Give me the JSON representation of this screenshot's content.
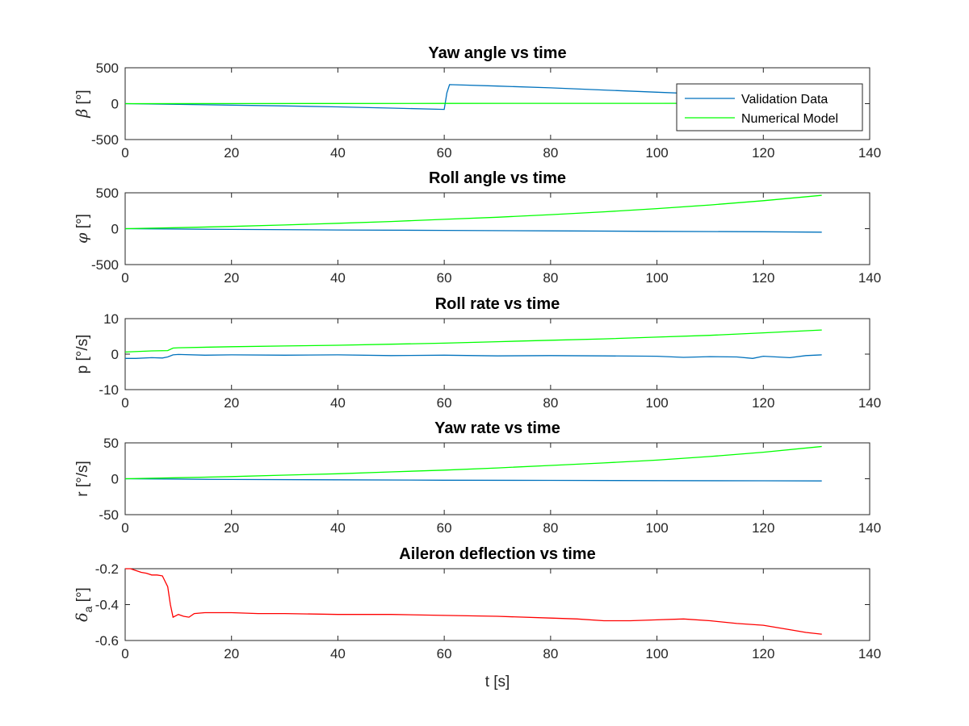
{
  "chart_data": [
    {
      "type": "line",
      "title": "Yaw angle vs time",
      "ylabel_symbol": "β",
      "ylabel_unit": " [°]",
      "xlim": [
        0,
        140
      ],
      "ylim": [
        -500,
        500
      ],
      "xticks": [
        "0",
        "20",
        "40",
        "60",
        "80",
        "100",
        "120",
        "140"
      ],
      "yticks": [
        "-500",
        "0",
        "500"
      ],
      "ytick_values": [
        -500,
        0,
        500
      ],
      "legend": {
        "placement": "top-right",
        "entries": [
          "Validation Data",
          "Numerical Model"
        ]
      },
      "series": [
        {
          "name": "Validation Data",
          "color": "#0072BD",
          "x": [
            0,
            10,
            20,
            30,
            40,
            50,
            60,
            60.5,
            61,
            70,
            80,
            90,
            100,
            110,
            120,
            131
          ],
          "y": [
            0,
            -10,
            -20,
            -32,
            -45,
            -62,
            -80,
            150,
            265,
            245,
            220,
            190,
            160,
            130,
            100,
            55
          ]
        },
        {
          "name": "Numerical Model",
          "color": "#00FF00",
          "x": [
            0,
            20,
            40,
            60,
            80,
            100,
            120,
            131
          ],
          "y": [
            0,
            1,
            2,
            3,
            4,
            5,
            6,
            7
          ]
        }
      ]
    },
    {
      "type": "line",
      "title": "Roll angle vs time",
      "ylabel_symbol": "φ",
      "ylabel_unit": " [°]",
      "xlim": [
        0,
        140
      ],
      "ylim": [
        -500,
        500
      ],
      "xticks": [
        "0",
        "20",
        "40",
        "60",
        "80",
        "100",
        "120",
        "140"
      ],
      "yticks": [
        "-500",
        "0",
        "500"
      ],
      "ytick_values": [
        -500,
        0,
        500
      ],
      "series": [
        {
          "name": "Validation Data",
          "color": "#0072BD",
          "x": [
            0,
            20,
            40,
            60,
            80,
            100,
            120,
            131
          ],
          "y": [
            0,
            -10,
            -18,
            -24,
            -30,
            -37,
            -43,
            -48
          ]
        },
        {
          "name": "Numerical Model",
          "color": "#00FF00",
          "x": [
            0,
            10,
            20,
            30,
            40,
            50,
            60,
            70,
            80,
            90,
            100,
            110,
            120,
            131
          ],
          "y": [
            0,
            15,
            32,
            52,
            75,
            100,
            130,
            160,
            195,
            235,
            280,
            330,
            390,
            465
          ]
        }
      ]
    },
    {
      "type": "line",
      "title": "Roll rate vs time",
      "ylabel_symbol": "p",
      "ylabel_unit": " [°/s]",
      "xlim": [
        0,
        140
      ],
      "ylim": [
        -10,
        10
      ],
      "xticks": [
        "0",
        "20",
        "40",
        "60",
        "80",
        "100",
        "120",
        "140"
      ],
      "yticks": [
        "-10",
        "0",
        "10"
      ],
      "ytick_values": [
        -10,
        0,
        10
      ],
      "series": [
        {
          "name": "Validation Data",
          "color": "#0072BD",
          "x": [
            0,
            2,
            5,
            7,
            8,
            9,
            10,
            15,
            20,
            30,
            40,
            50,
            60,
            70,
            80,
            90,
            100,
            105,
            110,
            115,
            118,
            120,
            125,
            128,
            131
          ],
          "y": [
            -1.2,
            -1.2,
            -1.0,
            -1.1,
            -0.8,
            -0.2,
            -0.1,
            -0.3,
            -0.2,
            -0.3,
            -0.2,
            -0.4,
            -0.3,
            -0.5,
            -0.4,
            -0.5,
            -0.6,
            -0.9,
            -0.7,
            -0.8,
            -1.2,
            -0.6,
            -1.0,
            -0.4,
            -0.2
          ]
        },
        {
          "name": "Numerical Model",
          "color": "#00FF00",
          "x": [
            0,
            5,
            8,
            9,
            10,
            20,
            30,
            40,
            50,
            60,
            70,
            80,
            90,
            100,
            110,
            120,
            131
          ],
          "y": [
            0.6,
            0.9,
            1.0,
            1.7,
            1.8,
            2.1,
            2.3,
            2.5,
            2.8,
            3.1,
            3.5,
            3.9,
            4.3,
            4.8,
            5.3,
            6.0,
            6.8
          ]
        }
      ]
    },
    {
      "type": "line",
      "title": "Yaw rate vs time",
      "ylabel_symbol": "r",
      "ylabel_unit": " [°/s]",
      "xlim": [
        0,
        140
      ],
      "ylim": [
        -50,
        50
      ],
      "xticks": [
        "0",
        "20",
        "40",
        "60",
        "80",
        "100",
        "120",
        "140"
      ],
      "yticks": [
        "-50",
        "0",
        "50"
      ],
      "ytick_values": [
        -50,
        0,
        50
      ],
      "series": [
        {
          "name": "Validation Data",
          "color": "#0072BD",
          "x": [
            0,
            20,
            40,
            60,
            80,
            100,
            120,
            131
          ],
          "y": [
            0,
            -1,
            -1.5,
            -2,
            -2.3,
            -2.6,
            -2.8,
            -3
          ]
        },
        {
          "name": "Numerical Model",
          "color": "#00FF00",
          "x": [
            0,
            10,
            20,
            30,
            40,
            50,
            60,
            70,
            80,
            90,
            100,
            110,
            120,
            131
          ],
          "y": [
            0,
            1.5,
            3,
            5,
            7,
            9.5,
            12,
            15,
            18.5,
            22,
            26,
            31,
            37,
            45
          ]
        }
      ]
    },
    {
      "type": "line",
      "title": "Aileron deflection vs time",
      "ylabel_symbol": "δ",
      "ylabel_sub": "a",
      "ylabel_unit": " [°]",
      "xlabel": "t [s]",
      "xlim": [
        0,
        140
      ],
      "ylim": [
        -0.6,
        -0.2
      ],
      "xticks": [
        "0",
        "20",
        "40",
        "60",
        "80",
        "100",
        "120",
        "140"
      ],
      "yticks": [
        "-0.6",
        "-0.4",
        "-0.2"
      ],
      "ytick_values": [
        -0.6,
        -0.4,
        -0.2
      ],
      "series": [
        {
          "name": "Aileron",
          "color": "#FF0000",
          "x": [
            0,
            1,
            2,
            3,
            4,
            5,
            6,
            7,
            8,
            8.5,
            9,
            10,
            11,
            12,
            13,
            15,
            20,
            25,
            30,
            40,
            50,
            60,
            70,
            80,
            85,
            90,
            95,
            100,
            105,
            110,
            115,
            120,
            125,
            128,
            131
          ],
          "y": [
            -0.2,
            -0.2,
            -0.21,
            -0.22,
            -0.225,
            -0.235,
            -0.235,
            -0.24,
            -0.3,
            -0.4,
            -0.47,
            -0.455,
            -0.465,
            -0.47,
            -0.45,
            -0.445,
            -0.445,
            -0.45,
            -0.45,
            -0.455,
            -0.455,
            -0.46,
            -0.465,
            -0.475,
            -0.48,
            -0.49,
            -0.49,
            -0.485,
            -0.48,
            -0.49,
            -0.505,
            -0.515,
            -0.54,
            -0.555,
            -0.565
          ]
        }
      ]
    }
  ]
}
